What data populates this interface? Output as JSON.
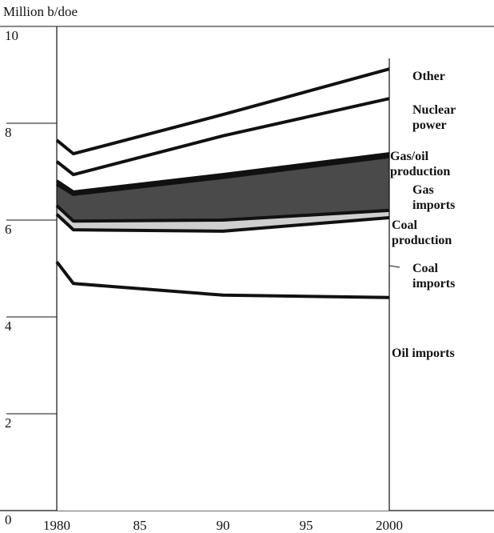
{
  "chart_data": {
    "type": "stacked_area",
    "y_axis_label": "Million b/doe",
    "x": [
      1980,
      1981,
      1990,
      2000
    ],
    "xlim": [
      1980,
      2000
    ],
    "xticks": [
      1980,
      {
        "value": 1985,
        "label": "85"
      },
      {
        "value": 1990,
        "label": "90"
      },
      {
        "value": 1995,
        "label": "95"
      },
      2000
    ],
    "ylim": [
      0,
      10
    ],
    "yticks": [
      0,
      2,
      4,
      6,
      8,
      10
    ],
    "series": [
      {
        "name": "Oil imports",
        "color": "#ffffff",
        "values": [
          5.14,
          4.69,
          4.45,
          4.4
        ]
      },
      {
        "name": "Coal imports",
        "color": "#ffffff",
        "values": [
          0.98,
          1.11,
          1.32,
          1.65
        ]
      },
      {
        "name": "Coal production",
        "color": "#cfcfcf",
        "values": [
          0.18,
          0.18,
          0.23,
          0.15
        ]
      },
      {
        "name": "Gas imports",
        "color": "#4a4a4a",
        "values": [
          0.44,
          0.55,
          0.88,
          1.11
        ]
      },
      {
        "name": "Gas/oil production",
        "color": "#333333",
        "values": [
          0.07,
          0.05,
          0.06,
          0.06
        ]
      },
      {
        "name": "Nuclear power",
        "color": "#ffffff",
        "values": [
          0.4,
          0.36,
          0.8,
          1.14
        ]
      },
      {
        "name": "Other",
        "color": "#ffffff",
        "values": [
          0.44,
          0.43,
          0.44,
          0.61
        ]
      }
    ]
  }
}
